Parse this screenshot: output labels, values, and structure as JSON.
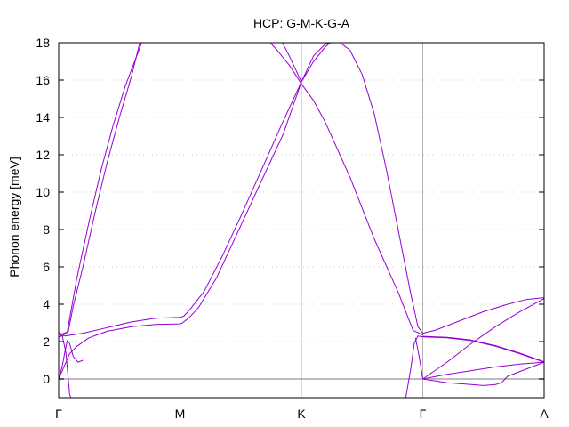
{
  "chart_data": {
    "type": "line",
    "title": "HCP: G-M-K-G-A",
    "xlabel": "",
    "ylabel": "Phonon energy [meV]",
    "ylim": [
      -1,
      18
    ],
    "xlim": [
      0,
      4
    ],
    "yticks": [
      0,
      2,
      4,
      6,
      8,
      10,
      12,
      14,
      16,
      18
    ],
    "xticks": [
      {
        "x": 0,
        "label": "Γ"
      },
      {
        "x": 1,
        "label": "M"
      },
      {
        "x": 2,
        "label": "K"
      },
      {
        "x": 3,
        "label": "Γ"
      },
      {
        "x": 4,
        "label": "A"
      }
    ],
    "grid": "dotted horizontal at y ticks; solid vertical at high-symmetry points",
    "zero_line": 0,
    "line_color": "#9400d3",
    "series": [
      {
        "values": [
          [
            0,
            0
          ],
          [
            0.04,
            0.6
          ],
          [
            0.09,
            1.35
          ],
          [
            0.15,
            1.75
          ],
          [
            0.25,
            2.2
          ],
          [
            0.4,
            2.55
          ],
          [
            0.6,
            2.8
          ],
          [
            0.8,
            2.92
          ],
          [
            1.0,
            2.95
          ],
          [
            1.02,
            3.0
          ],
          [
            1.07,
            3.25
          ],
          [
            1.15,
            3.8
          ],
          [
            1.3,
            5.4
          ],
          [
            1.5,
            8.2
          ],
          [
            1.7,
            11.0
          ],
          [
            1.85,
            13.1
          ],
          [
            2.0,
            15.9
          ],
          [
            2.1,
            17.0
          ],
          [
            2.2,
            17.8
          ],
          [
            2.3,
            18.3
          ]
        ]
      },
      {
        "values": [
          [
            0,
            2.4
          ],
          [
            0.05,
            2.3
          ],
          [
            0.2,
            2.45
          ],
          [
            0.4,
            2.75
          ],
          [
            0.6,
            3.05
          ],
          [
            0.8,
            3.25
          ],
          [
            1.0,
            3.3
          ],
          [
            1.03,
            3.35
          ],
          [
            1.08,
            3.7
          ],
          [
            1.2,
            4.7
          ],
          [
            1.35,
            6.6
          ],
          [
            1.5,
            8.7
          ],
          [
            1.7,
            11.6
          ],
          [
            1.85,
            13.8
          ],
          [
            2.0,
            15.9
          ]
        ]
      },
      {
        "values": [
          [
            0,
            0
          ],
          [
            0.03,
            0.7
          ],
          [
            0.05,
            1.4
          ],
          [
            0.07,
            2.05
          ],
          [
            0.09,
            1.9
          ],
          [
            0.12,
            1.2
          ],
          [
            0.16,
            0.9
          ],
          [
            0.2,
            1.0
          ]
        ]
      },
      {
        "values": [
          [
            0,
            2.25
          ],
          [
            0.03,
            2.3
          ],
          [
            0.06,
            1.4
          ],
          [
            0.09,
            -0.8
          ],
          [
            0.1,
            -1.0
          ]
        ]
      },
      {
        "values": [
          [
            0,
            2.5
          ],
          [
            0.02,
            2.4
          ],
          [
            0.07,
            2.5
          ],
          [
            0.1,
            3.6
          ],
          [
            0.15,
            5.4
          ],
          [
            0.25,
            8.4
          ],
          [
            0.35,
            11.2
          ],
          [
            0.45,
            13.6
          ],
          [
            0.55,
            15.7
          ],
          [
            0.65,
            17.4
          ],
          [
            0.7,
            18.3
          ]
        ]
      },
      {
        "values": [
          [
            0,
            2.4
          ],
          [
            0.03,
            2.3
          ],
          [
            0.08,
            2.55
          ],
          [
            0.12,
            3.9
          ],
          [
            0.2,
            6.0
          ],
          [
            0.3,
            8.9
          ],
          [
            0.4,
            11.6
          ],
          [
            0.5,
            14.0
          ],
          [
            0.6,
            16.2
          ],
          [
            0.68,
            18.3
          ]
        ]
      },
      {
        "values": [
          [
            1.7,
            18.3
          ],
          [
            1.8,
            17.6
          ],
          [
            1.9,
            16.8
          ],
          [
            2.0,
            15.8
          ],
          [
            2.1,
            14.9
          ],
          [
            2.2,
            13.7
          ],
          [
            2.4,
            10.8
          ],
          [
            2.6,
            7.5
          ],
          [
            2.8,
            4.6
          ],
          [
            2.92,
            2.6
          ],
          [
            3.0,
            2.35
          ]
        ]
      },
      {
        "values": [
          [
            1.82,
            18.3
          ],
          [
            1.9,
            17.3
          ],
          [
            2.0,
            15.9
          ],
          [
            2.1,
            17.3
          ],
          [
            2.2,
            17.95
          ],
          [
            2.3,
            18.1
          ],
          [
            2.4,
            17.6
          ],
          [
            2.5,
            16.3
          ],
          [
            2.6,
            14.2
          ],
          [
            2.7,
            11.2
          ],
          [
            2.8,
            7.9
          ],
          [
            2.9,
            4.6
          ],
          [
            2.96,
            2.8
          ],
          [
            3.0,
            2.45
          ]
        ]
      },
      {
        "values": [
          [
            2.86,
            -1.0
          ],
          [
            2.9,
            0.5
          ],
          [
            2.93,
            1.9
          ],
          [
            2.96,
            2.3
          ],
          [
            3.0,
            2.25
          ]
        ]
      },
      {
        "values": [
          [
            2.94,
            2.2
          ],
          [
            2.97,
            1.2
          ],
          [
            3.0,
            0
          ]
        ]
      },
      {
        "values": [
          [
            3.0,
            2.45
          ],
          [
            3.1,
            2.6
          ],
          [
            3.3,
            3.1
          ],
          [
            3.5,
            3.6
          ],
          [
            3.7,
            4.0
          ],
          [
            3.85,
            4.25
          ],
          [
            4.0,
            4.35
          ]
        ]
      },
      {
        "values": [
          [
            3.0,
            2.25
          ],
          [
            3.2,
            2.2
          ],
          [
            3.4,
            2.05
          ],
          [
            3.6,
            1.75
          ],
          [
            3.8,
            1.35
          ],
          [
            4.0,
            0.9
          ]
        ]
      },
      {
        "values": [
          [
            3.0,
            2.28
          ],
          [
            3.2,
            2.23
          ],
          [
            3.4,
            2.08
          ],
          [
            3.6,
            1.78
          ],
          [
            3.8,
            1.38
          ],
          [
            4.0,
            0.92
          ]
        ]
      },
      {
        "values": [
          [
            3.0,
            0
          ],
          [
            3.2,
            0.9
          ],
          [
            3.4,
            1.9
          ],
          [
            3.6,
            2.8
          ],
          [
            3.8,
            3.6
          ],
          [
            4.0,
            4.3
          ]
        ]
      },
      {
        "values": [
          [
            3.0,
            0
          ],
          [
            3.2,
            0.25
          ],
          [
            3.4,
            0.45
          ],
          [
            3.6,
            0.65
          ],
          [
            3.8,
            0.8
          ],
          [
            4.0,
            0.9
          ]
        ]
      },
      {
        "values": [
          [
            3.0,
            0
          ],
          [
            3.2,
            -0.2
          ],
          [
            3.4,
            -0.3
          ],
          [
            3.5,
            -0.35
          ],
          [
            3.6,
            -0.3
          ],
          [
            3.65,
            -0.2
          ],
          [
            3.7,
            0.15
          ],
          [
            3.8,
            0.4
          ],
          [
            3.9,
            0.65
          ],
          [
            4.0,
            0.9
          ]
        ]
      }
    ]
  }
}
